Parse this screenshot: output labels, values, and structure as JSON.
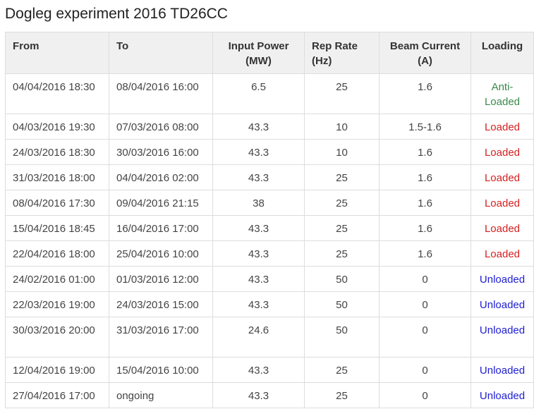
{
  "title": "Dogleg experiment 2016 TD26CC",
  "headers": {
    "from": "From",
    "to": "To",
    "input_power": "Input Power (MW)",
    "rep_rate": "Rep Rate (Hz)",
    "beam_current": "Beam Current (A)",
    "loading": "Loading"
  },
  "colors": {
    "anti_loaded": "#3a8a4a",
    "loaded": "#d42020",
    "unloaded": "#2020d4"
  },
  "rows": [
    {
      "from": "04/04/2016 18:30",
      "to": "08/04/2016 16:00",
      "power": "6.5",
      "rep": "25",
      "current": "1.6",
      "loading": "Anti-Loaded",
      "state": "anti"
    },
    {
      "from": "04/03/2016 19:30",
      "to": "07/03/2016 08:00",
      "power": "43.3",
      "rep": "10",
      "current": "1.5-1.6",
      "loading": "Loaded",
      "state": "loaded"
    },
    {
      "from": "24/03/2016 18:30",
      "to": "30/03/2016 16:00",
      "power": "43.3",
      "rep": "10",
      "current": "1.6",
      "loading": "Loaded",
      "state": "loaded"
    },
    {
      "from": "31/03/2016 18:00",
      "to": "04/04/2016 02:00",
      "power": "43.3",
      "rep": "25",
      "current": "1.6",
      "loading": "Loaded",
      "state": "loaded"
    },
    {
      "from": "08/04/2016 17:30",
      "to": "09/04/2016 21:15",
      "power": "38",
      "rep": "25",
      "current": "1.6",
      "loading": "Loaded",
      "state": "loaded"
    },
    {
      "from": "15/04/2016 18:45",
      "to": "16/04/2016 17:00",
      "power": "43.3",
      "rep": "25",
      "current": "1.6",
      "loading": "Loaded",
      "state": "loaded"
    },
    {
      "from": "22/04/2016 18:00",
      "to": "25/04/2016 10:00",
      "power": "43.3",
      "rep": "25",
      "current": "1.6",
      "loading": "Loaded",
      "state": "loaded"
    },
    {
      "from": "24/02/2016 01:00",
      "to": "01/03/2016 12:00",
      "power": "43.3",
      "rep": "50",
      "current": "0",
      "loading": "Unloaded",
      "state": "unloaded"
    },
    {
      "from": "22/03/2016 19:00",
      "to": "24/03/2016 15:00",
      "power": "43.3",
      "rep": "50",
      "current": "0",
      "loading": "Unloaded",
      "state": "unloaded"
    },
    {
      "from": "30/03/2016 20:00",
      "to": "31/03/2016 17:00",
      "power": "24.6",
      "rep": "50",
      "current": "0",
      "loading": "Unloaded",
      "state": "unloaded"
    },
    {
      "from": "12/04/2016 19:00",
      "to": "15/04/2016 10:00",
      "power": "43.3",
      "rep": "25",
      "current": "0",
      "loading": "Unloaded",
      "state": "unloaded"
    },
    {
      "from": "27/04/2016 17:00",
      "to": "ongoing",
      "power": "43.3",
      "rep": "25",
      "current": "0",
      "loading": "Unloaded",
      "state": "unloaded"
    }
  ]
}
